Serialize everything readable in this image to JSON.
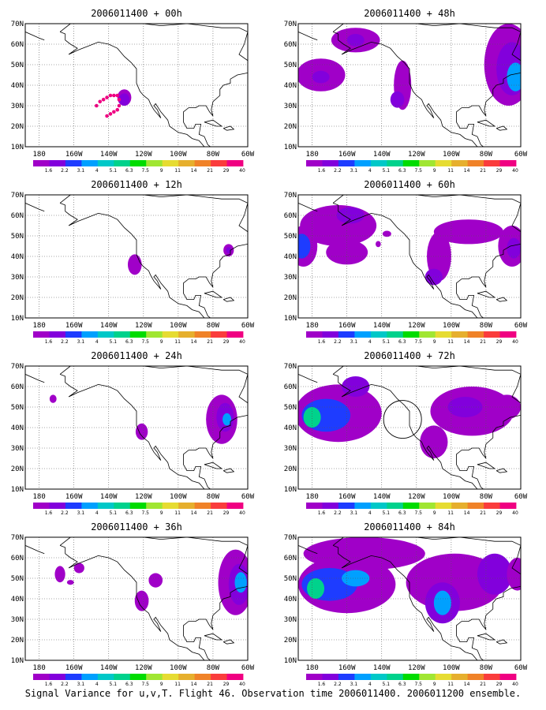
{
  "figure": {
    "caption": "Signal Variance for u,v,T. Flight 46. Observation time 2006011400. 2006011200 ensemble."
  },
  "colorbar": {
    "labels": [
      "1.6",
      "2.2",
      "3.1",
      "4",
      "5.1",
      "6.3",
      "7.5",
      "9",
      "11",
      "14",
      "21",
      "29",
      "40"
    ],
    "colors": [
      "#a000c8",
      "#8200dc",
      "#1e3cff",
      "#00a0ff",
      "#00c8c8",
      "#00d28c",
      "#00dc00",
      "#a0e632",
      "#e6dc32",
      "#e6af2d",
      "#f08228",
      "#fa3c3c",
      "#f00082"
    ]
  },
  "map": {
    "lon_ticks": [
      "180",
      "160W",
      "140W",
      "120W",
      "100W",
      "80W",
      "60W"
    ],
    "lat_ticks": [
      "70N",
      "60N",
      "50N",
      "40N",
      "30N",
      "20N",
      "10N"
    ],
    "lon_range": [
      -188,
      -60
    ],
    "lat_range": [
      10,
      70
    ],
    "grid": "dotted"
  },
  "chart_data": [
    {
      "type": "heatmap",
      "title": "2006011400 + 00h",
      "blobs": [
        {
          "lon": -131,
          "lat": 34,
          "rx": 4,
          "ry": 4,
          "lv": 0
        },
        {
          "lon": -131,
          "lat": 33,
          "rx": 3,
          "ry": 3,
          "lv": 1
        }
      ],
      "dots": [
        [
          -147,
          30
        ],
        [
          -145,
          32
        ],
        [
          -143,
          33
        ],
        [
          -141,
          34
        ],
        [
          -139,
          35
        ],
        [
          -137,
          35
        ],
        [
          -135,
          35
        ],
        [
          -134,
          33
        ],
        [
          -134,
          30
        ],
        [
          -135,
          28
        ],
        [
          -137,
          27
        ],
        [
          -139,
          26
        ],
        [
          -141,
          25
        ]
      ]
    },
    {
      "type": "heatmap",
      "title": "2006011400 + 48h",
      "blobs": [
        {
          "lon": -155,
          "lat": 62,
          "rx": 14,
          "ry": 6,
          "lv": 0
        },
        {
          "lon": -155,
          "lat": 62,
          "rx": 5,
          "ry": 3,
          "lv": 1
        },
        {
          "lon": -175,
          "lat": 45,
          "rx": 14,
          "ry": 8,
          "lv": 0
        },
        {
          "lon": -175,
          "lat": 44,
          "rx": 5,
          "ry": 3,
          "lv": 1
        },
        {
          "lon": -128,
          "lat": 40,
          "rx": 5,
          "ry": 12,
          "lv": 0
        },
        {
          "lon": -131,
          "lat": 33,
          "rx": 4,
          "ry": 4,
          "lv": 1
        },
        {
          "lon": -67,
          "lat": 50,
          "rx": 14,
          "ry": 20,
          "lv": 0
        },
        {
          "lon": -65,
          "lat": 48,
          "rx": 9,
          "ry": 13,
          "lv": 1
        },
        {
          "lon": -63,
          "lat": 44,
          "rx": 5,
          "ry": 7,
          "lv": 3
        }
      ]
    },
    {
      "type": "heatmap",
      "title": "2006011400 + 12h",
      "blobs": [
        {
          "lon": -125,
          "lat": 36,
          "rx": 4,
          "ry": 5,
          "lv": 0
        },
        {
          "lon": -71,
          "lat": 43,
          "rx": 3,
          "ry": 3,
          "lv": 0
        },
        {
          "lon": -71,
          "lat": 43,
          "rx": 1.5,
          "ry": 1.5,
          "lv": 1
        }
      ]
    },
    {
      "type": "heatmap",
      "title": "2006011400 + 60h",
      "blobs": [
        {
          "lon": -165,
          "lat": 55,
          "rx": 22,
          "ry": 10,
          "lv": 0
        },
        {
          "lon": -185,
          "lat": 45,
          "rx": 8,
          "ry": 10,
          "lv": 0
        },
        {
          "lon": -186,
          "lat": 45,
          "rx": 5,
          "ry": 6,
          "lv": 2
        },
        {
          "lon": -158,
          "lat": 60,
          "rx": 8,
          "ry": 4,
          "lv": 1
        },
        {
          "lon": -160,
          "lat": 42,
          "rx": 12,
          "ry": 6,
          "lv": 0
        },
        {
          "lon": -107,
          "lat": 40,
          "rx": 7,
          "ry": 12,
          "lv": 0
        },
        {
          "lon": -110,
          "lat": 30,
          "rx": 5,
          "ry": 4,
          "lv": 1
        },
        {
          "lon": -90,
          "lat": 52,
          "rx": 20,
          "ry": 6,
          "lv": 0
        },
        {
          "lon": -65,
          "lat": 45,
          "rx": 8,
          "ry": 10,
          "lv": 0
        },
        {
          "lon": -64,
          "lat": 44,
          "rx": 4,
          "ry": 5,
          "lv": 1
        },
        {
          "lon": -137,
          "lat": 51,
          "rx": 2.5,
          "ry": 1.5,
          "lv": 0
        },
        {
          "lon": -142,
          "lat": 46,
          "rx": 1.5,
          "ry": 1.5,
          "lv": 0
        }
      ]
    },
    {
      "type": "heatmap",
      "title": "2006011400 + 24h",
      "blobs": [
        {
          "lon": -172,
          "lat": 54,
          "rx": 2,
          "ry": 2,
          "lv": 0
        },
        {
          "lon": -121,
          "lat": 38,
          "rx": 3.5,
          "ry": 4,
          "lv": 0
        },
        {
          "lon": -75,
          "lat": 44,
          "rx": 9,
          "ry": 12,
          "lv": 0
        },
        {
          "lon": -73,
          "lat": 45,
          "rx": 5,
          "ry": 7,
          "lv": 1
        },
        {
          "lon": -72,
          "lat": 44,
          "rx": 2.5,
          "ry": 3,
          "lv": 3
        }
      ]
    },
    {
      "type": "heatmap",
      "title": "2006011400 + 72h",
      "blobs": [
        {
          "lon": -165,
          "lat": 47,
          "rx": 25,
          "ry": 14,
          "lv": 0
        },
        {
          "lon": -172,
          "lat": 46,
          "rx": 14,
          "ry": 8,
          "lv": 2
        },
        {
          "lon": -180,
          "lat": 45,
          "rx": 5,
          "ry": 5,
          "lv": 5
        },
        {
          "lon": -155,
          "lat": 60,
          "rx": 8,
          "ry": 5,
          "lv": 1
        },
        {
          "lon": -110,
          "lat": 33,
          "rx": 8,
          "ry": 8,
          "lv": 0
        },
        {
          "lon": -88,
          "lat": 48,
          "rx": 24,
          "ry": 12,
          "lv": 0
        },
        {
          "lon": -92,
          "lat": 50,
          "rx": 10,
          "ry": 5,
          "lv": 1
        },
        {
          "lon": -68,
          "lat": 50,
          "rx": 8,
          "ry": 6,
          "lv": 0
        }
      ]
    },
    {
      "type": "heatmap",
      "title": "2006011400 + 36h",
      "blobs": [
        {
          "lon": -168,
          "lat": 52,
          "rx": 3,
          "ry": 4,
          "lv": 0
        },
        {
          "lon": -157,
          "lat": 55,
          "rx": 3,
          "ry": 2.5,
          "lv": 0
        },
        {
          "lon": -162,
          "lat": 48,
          "rx": 2,
          "ry": 1.2,
          "lv": 0
        },
        {
          "lon": -121,
          "lat": 39,
          "rx": 4,
          "ry": 5,
          "lv": 0
        },
        {
          "lon": -113,
          "lat": 49,
          "rx": 4,
          "ry": 3.5,
          "lv": 0
        },
        {
          "lon": -67,
          "lat": 48,
          "rx": 10,
          "ry": 16,
          "lv": 0
        },
        {
          "lon": -65,
          "lat": 47,
          "rx": 6,
          "ry": 10,
          "lv": 1
        },
        {
          "lon": -64,
          "lat": 48,
          "rx": 3.5,
          "ry": 5,
          "lv": 3
        }
      ]
    },
    {
      "type": "heatmap",
      "title": "2006011400 + 84h",
      "blobs": [
        {
          "lon": -150,
          "lat": 62,
          "rx": 35,
          "ry": 8,
          "lv": 0
        },
        {
          "lon": -160,
          "lat": 47,
          "rx": 28,
          "ry": 14,
          "lv": 0
        },
        {
          "lon": -170,
          "lat": 47,
          "rx": 16,
          "ry": 8,
          "lv": 2
        },
        {
          "lon": -178,
          "lat": 45,
          "rx": 5,
          "ry": 5,
          "lv": 5
        },
        {
          "lon": -155,
          "lat": 50,
          "rx": 8,
          "ry": 4,
          "lv": 3
        },
        {
          "lon": -98,
          "lat": 48,
          "rx": 28,
          "ry": 14,
          "lv": 0
        },
        {
          "lon": -105,
          "lat": 38,
          "rx": 10,
          "ry": 10,
          "lv": 1
        },
        {
          "lon": -105,
          "lat": 38,
          "rx": 5,
          "ry": 6,
          "lv": 3
        },
        {
          "lon": -75,
          "lat": 52,
          "rx": 10,
          "ry": 10,
          "lv": 1
        },
        {
          "lon": -62,
          "lat": 52,
          "rx": 6,
          "ry": 8,
          "lv": 0
        }
      ]
    }
  ]
}
